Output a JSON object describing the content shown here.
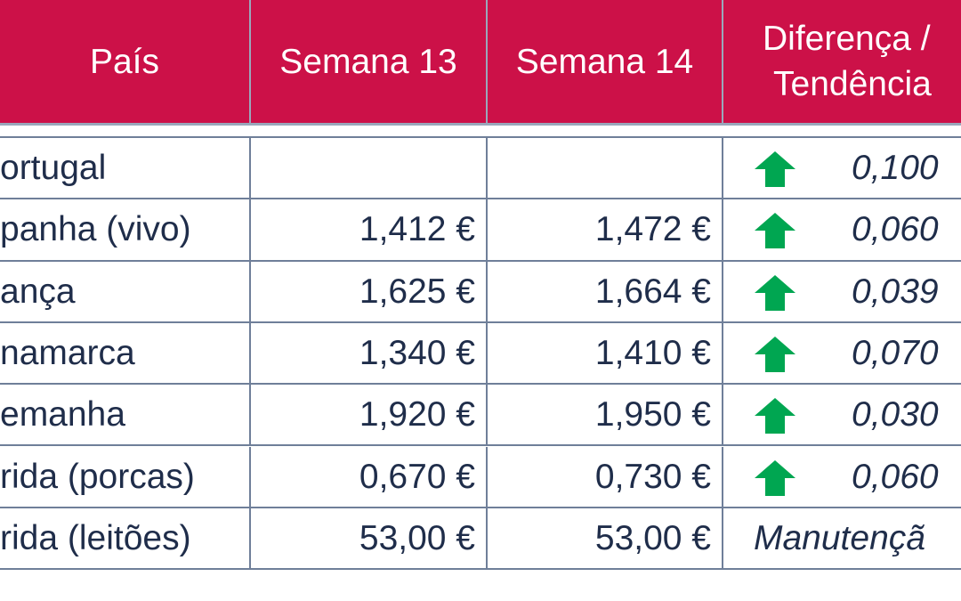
{
  "table": {
    "header": [
      "País",
      "Semana 13",
      "Semana 14",
      [
        "Diferença /",
        "Tendência"
      ]
    ],
    "rows": [
      [
        "ortugal",
        "",
        "",
        "0,100"
      ],
      [
        "panha (vivo)",
        "1,412 €",
        "1,472 €",
        "0,060"
      ],
      [
        "ança",
        "1,625 €",
        "1,664 €",
        "0,039"
      ],
      [
        "namarca",
        "1,340 €",
        "1,410 €",
        "0,070"
      ],
      [
        "emanha",
        "1,920 €",
        "1,950 €",
        "0,030"
      ],
      [
        "rida (porcas)",
        "0,670 €",
        "0,730 €",
        "0,060"
      ],
      [
        "rida (leitões)",
        "53,00 €",
        "53,00 €",
        "Manutençã"
      ]
    ]
  }
}
